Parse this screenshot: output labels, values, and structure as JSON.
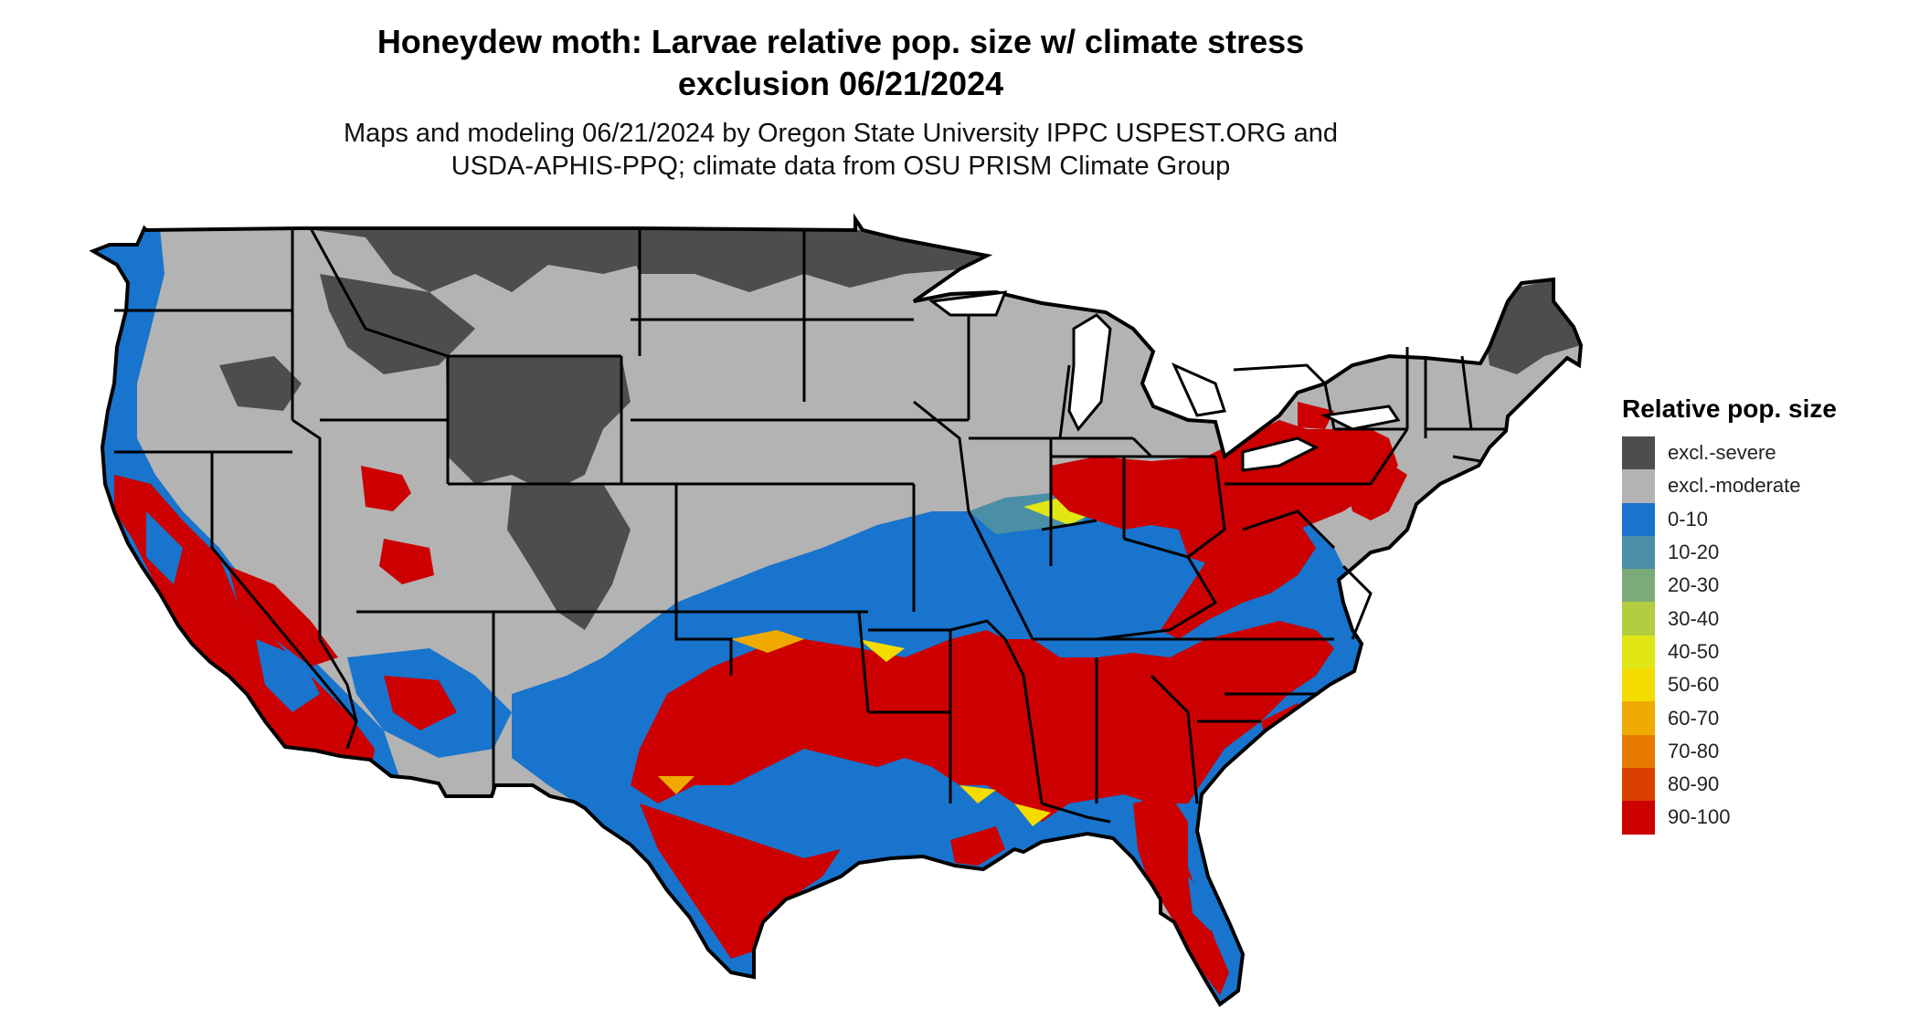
{
  "title": {
    "line1": "Honeydew moth: Larvae relative pop. size w/ climate stress",
    "line2": "exclusion 06/21/2024"
  },
  "subtitle": {
    "line1": "Maps and modeling 06/21/2024 by Oregon State University IPPC USPEST.ORG and",
    "line2": "USDA-APHIS-PPQ; climate data from OSU PRISM Climate Group"
  },
  "legend": {
    "title": "Relative pop. size",
    "items": [
      {
        "label": "excl.-severe",
        "color": "#4d4d4d"
      },
      {
        "label": "excl.-moderate",
        "color": "#b3b3b3"
      },
      {
        "label": "0-10",
        "color": "#1874cd"
      },
      {
        "label": "10-20",
        "color": "#4a8fa6"
      },
      {
        "label": "20-30",
        "color": "#7aab78"
      },
      {
        "label": "30-40",
        "color": "#b2cd40"
      },
      {
        "label": "40-50",
        "color": "#e1e615"
      },
      {
        "label": "50-60",
        "color": "#f4dc00"
      },
      {
        "label": "60-70",
        "color": "#eeaa00"
      },
      {
        "label": "70-80",
        "color": "#e67a00"
      },
      {
        "label": "80-90",
        "color": "#d94000"
      },
      {
        "label": "90-100",
        "color": "#cc0000"
      }
    ]
  }
}
